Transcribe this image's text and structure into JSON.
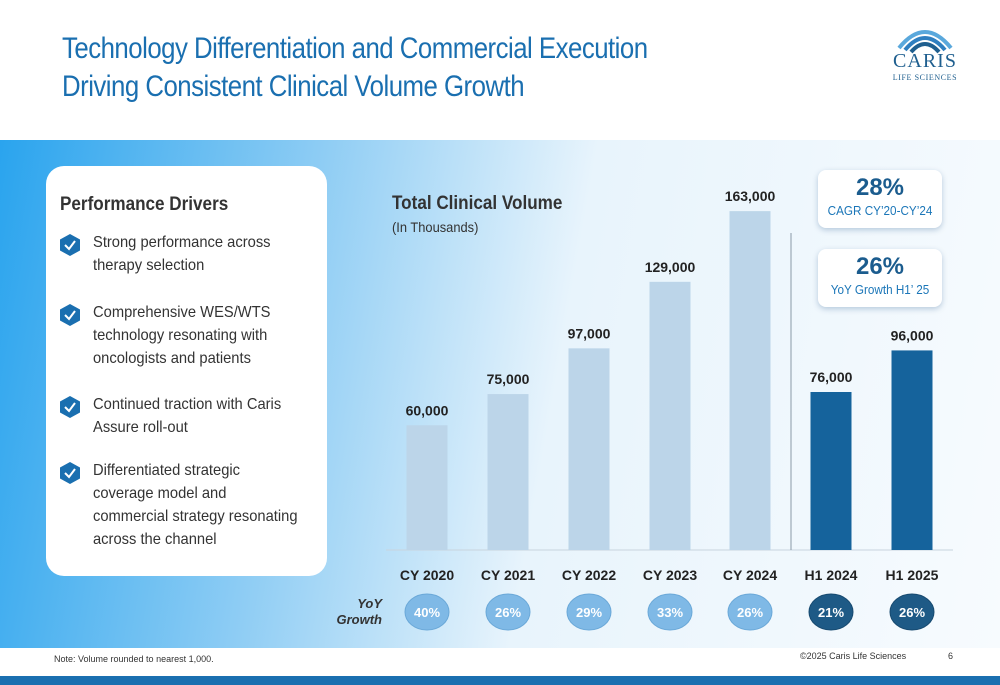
{
  "title": "Technology Differentiation and Commercial Execution Driving Consistent Clinical Volume Growth",
  "logo": {
    "name": "CARIS",
    "tagline": "LIFE SCIENCES"
  },
  "drivers": {
    "heading": "Performance Drivers",
    "items": [
      "Strong performance across therapy selection",
      "Comprehensive WES/WTS technology resonating with oncologists and patients",
      "Continued traction with Caris Assure roll-out",
      "Differentiated strategic coverage model and commercial strategy resonating across the channel"
    ]
  },
  "callouts": [
    {
      "value": "28%",
      "label": "CAGR CY’20-CY’24"
    },
    {
      "value": "26%",
      "label": "YoY Growth H1’ 25"
    }
  ],
  "yoy_label_line1": "YoY",
  "yoy_label_line2": "Growth",
  "footnote": "Note:  Volume rounded to nearest 1,000.",
  "copyright": "©2025 Caris Life Sciences",
  "page_number": "6",
  "colors": {
    "annual_bar": "#bcd5e9",
    "half_year_bar": "#15639c",
    "annual_pill": "#7fb9e6",
    "half_pill": "#1e5a86",
    "brand": "#1a6fb0"
  },
  "chart_data": {
    "type": "bar",
    "title": "Total Clinical Volume",
    "subtitle": "(In Thousands)",
    "categories": [
      "CY 2020",
      "CY 2021",
      "CY 2022",
      "CY 2023",
      "CY 2024",
      "H1 2024",
      "H1 2025"
    ],
    "values": [
      60000,
      75000,
      97000,
      129000,
      163000,
      76000,
      96000
    ],
    "value_labels": [
      "60,000",
      "75,000",
      "97,000",
      "129,000",
      "163,000",
      "76,000",
      "96,000"
    ],
    "groups": [
      "annual",
      "annual",
      "annual",
      "annual",
      "annual",
      "half",
      "half"
    ],
    "yoy_growth": [
      "40%",
      "26%",
      "29%",
      "33%",
      "26%",
      "21%",
      "26%"
    ],
    "ylim": [
      0,
      190000
    ]
  }
}
